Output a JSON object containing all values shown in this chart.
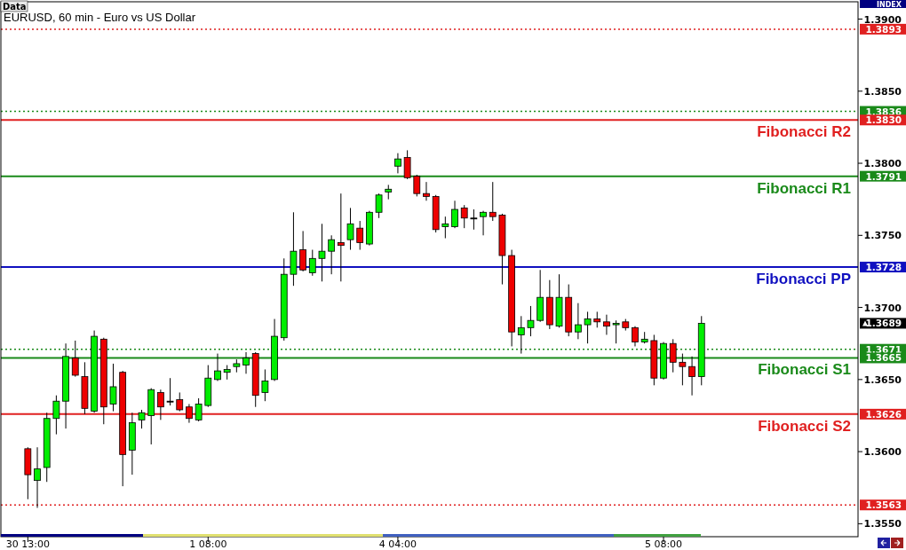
{
  "chart_data": {
    "type": "candlestick",
    "title": "EURUSD, 60 min - Euro vs US Dollar",
    "annotations": [
      "Data",
      "INDEX",
      "1.3893",
      "1.3836",
      "1.3830",
      "1.3791",
      "1.3728",
      "1.3671",
      "1.3665",
      "1.3626",
      "1.3563",
      "1.3689"
    ],
    "categories": [
      "30 13:00",
      null,
      null,
      null,
      null,
      null,
      null,
      null,
      null,
      null,
      null,
      null,
      null,
      null,
      null,
      null,
      null,
      null,
      null,
      "1 08:00",
      null,
      null,
      null,
      null,
      null,
      null,
      null,
      null,
      null,
      null,
      null,
      null,
      null,
      null,
      null,
      null,
      null,
      null,
      null,
      "4 04:00",
      null,
      null,
      null,
      null,
      null,
      null,
      null,
      null,
      null,
      null,
      null,
      null,
      null,
      null,
      null,
      null,
      null,
      null,
      null,
      null,
      null,
      null,
      null,
      null,
      null,
      null,
      null,
      "5 08:00",
      null,
      null,
      null,
      null,
      null,
      null,
      null,
      null,
      null,
      null,
      null,
      null,
      null,
      null,
      null,
      null,
      null,
      null,
      null,
      null
    ],
    "ohlc": [
      [
        1.3602,
        1.3603,
        1.3567,
        1.3584
      ],
      [
        1.358,
        1.3603,
        1.3561,
        1.3588
      ],
      [
        1.3589,
        1.3627,
        1.3579,
        1.3623
      ],
      [
        1.3623,
        1.3639,
        1.3612,
        1.3635
      ],
      [
        1.3635,
        1.3675,
        1.3616,
        1.3666
      ],
      [
        1.3665,
        1.3677,
        1.3652,
        1.3653
      ],
      [
        1.3652,
        1.3662,
        1.3626,
        1.363
      ],
      [
        1.3628,
        1.3684,
        1.3627,
        1.368
      ],
      [
        1.3678,
        1.3679,
        1.3619,
        1.3631
      ],
      [
        1.3633,
        1.3661,
        1.3628,
        1.3645
      ],
      [
        1.3655,
        1.3656,
        1.3576,
        1.3598
      ],
      [
        1.3601,
        1.3627,
        1.3584,
        1.362
      ],
      [
        1.3622,
        1.3629,
        1.3616,
        1.3627
      ],
      [
        1.3625,
        1.3644,
        1.3605,
        1.3643
      ],
      [
        1.3641,
        1.3643,
        1.3622,
        1.3631
      ],
      [
        1.3635,
        1.3651,
        1.3632,
        1.3635
      ],
      [
        1.3636,
        1.3641,
        1.3628,
        1.3629
      ],
      [
        1.3631,
        1.3633,
        1.362,
        1.3623
      ],
      [
        1.3622,
        1.3637,
        1.3621,
        1.3633
      ],
      [
        1.3632,
        1.366,
        1.3631,
        1.3651
      ],
      [
        1.365,
        1.3668,
        1.3649,
        1.3656
      ],
      [
        1.3655,
        1.366,
        1.365,
        1.3657
      ],
      [
        1.3659,
        1.3664,
        1.3655,
        1.3661
      ],
      [
        1.366,
        1.3669,
        1.3654,
        1.3665
      ],
      [
        1.3668,
        1.3669,
        1.3631,
        1.3639
      ],
      [
        1.3641,
        1.3657,
        1.3635,
        1.3649
      ],
      [
        1.365,
        1.3692,
        1.3649,
        1.368
      ],
      [
        1.3679,
        1.3734,
        1.3677,
        1.3723
      ],
      [
        1.3723,
        1.3766,
        1.3715,
        1.3739
      ],
      [
        1.374,
        1.3753,
        1.3725,
        1.3726
      ],
      [
        1.3724,
        1.374,
        1.3722,
        1.3734
      ],
      [
        1.3734,
        1.3758,
        1.3718,
        1.3739
      ],
      [
        1.3739,
        1.375,
        1.3723,
        1.3747
      ],
      [
        1.3745,
        1.3779,
        1.3718,
        1.3743
      ],
      [
        1.3747,
        1.3769,
        1.374,
        1.3758
      ],
      [
        1.3755,
        1.376,
        1.374,
        1.3745
      ],
      [
        1.3744,
        1.3767,
        1.3743,
        1.3766
      ],
      [
        1.3766,
        1.3779,
        1.3762,
        1.3778
      ],
      [
        1.378,
        1.3785,
        1.3775,
        1.3782
      ],
      [
        1.3798,
        1.3807,
        1.3793,
        1.3803
      ],
      [
        1.3804,
        1.3809,
        1.3789,
        1.379
      ],
      [
        1.3791,
        1.3792,
        1.3777,
        1.3779
      ],
      [
        1.3779,
        1.3787,
        1.3774,
        1.3777
      ],
      [
        1.3777,
        1.3778,
        1.3752,
        1.3754
      ],
      [
        1.3756,
        1.3763,
        1.3748,
        1.3758
      ],
      [
        1.3756,
        1.3774,
        1.3755,
        1.3768
      ],
      [
        1.3769,
        1.3771,
        1.3755,
        1.3762
      ],
      [
        1.3762,
        1.3768,
        1.3754,
        1.3762
      ],
      [
        1.3763,
        1.3767,
        1.375,
        1.3766
      ],
      [
        1.3766,
        1.3787,
        1.376,
        1.3763
      ],
      [
        1.3764,
        1.3765,
        1.3716,
        1.3736
      ],
      [
        1.3736,
        1.374,
        1.3673,
        1.3683
      ],
      [
        1.3681,
        1.3694,
        1.3668,
        1.3686
      ],
      [
        1.3686,
        1.3701,
        1.368,
        1.3691
      ],
      [
        1.3691,
        1.3726,
        1.369,
        1.3707
      ],
      [
        1.3707,
        1.3719,
        1.3685,
        1.3688
      ],
      [
        1.3687,
        1.3723,
        1.3686,
        1.3707
      ],
      [
        1.3707,
        1.3716,
        1.368,
        1.3683
      ],
      [
        1.3683,
        1.3703,
        1.3678,
        1.3688
      ],
      [
        1.3688,
        1.3697,
        1.3675,
        1.3692
      ],
      [
        1.3692,
        1.3697,
        1.3686,
        1.369
      ],
      [
        1.369,
        1.3695,
        1.3681,
        1.3687
      ],
      [
        1.3688,
        1.3691,
        1.3675,
        1.3689
      ],
      [
        1.369,
        1.3692,
        1.3684,
        1.3686
      ],
      [
        1.3686,
        1.3687,
        1.3673,
        1.3676
      ],
      [
        1.3676,
        1.3683,
        1.3675,
        1.3678
      ],
      [
        1.3677,
        1.3681,
        1.3646,
        1.3651
      ],
      [
        1.3651,
        1.3676,
        1.365,
        1.3675
      ],
      [
        1.3675,
        1.3678,
        1.3655,
        1.3662
      ],
      [
        1.3662,
        1.3668,
        1.3646,
        1.3659
      ],
      [
        1.3659,
        1.3666,
        1.3639,
        1.3652
      ],
      [
        1.3652,
        1.3694,
        1.3646,
        1.3689
      ],
      null,
      null,
      null,
      null,
      null,
      null,
      null,
      null,
      null,
      null,
      null,
      null,
      null,
      null,
      null,
      null
    ],
    "colors": [
      "#ee0000",
      "#00ee00",
      "#00ee00",
      "#00ee00",
      "#00ee00",
      "#ee0000",
      "#ee0000",
      "#00ee00",
      "#ee0000",
      "#00ee00",
      "#ee0000",
      "#00ee00",
      "#00ee00",
      "#00ee00",
      "#ee0000",
      "#000000",
      "#ee0000",
      "#ee0000",
      "#00ee00",
      "#00ee00",
      "#00ee00",
      "#00ee00",
      "#00ee00",
      "#00ee00",
      "#ee0000",
      "#00ee00",
      "#00ee00",
      "#00ee00",
      "#00ee00",
      "#ee0000",
      "#00ee00",
      "#00ee00",
      "#00ee00",
      "#ee0000",
      "#00ee00",
      "#ee0000",
      "#00ee00",
      "#00ee00",
      "#00ee00",
      "#00ee00",
      "#ee0000",
      "#ee0000",
      "#ee0000",
      "#ee0000",
      "#00ee00",
      "#00ee00",
      "#ee0000",
      "#000000",
      "#00ee00",
      "#ee0000",
      "#ee0000",
      "#ee0000",
      "#00ee00",
      "#00ee00",
      "#00ee00",
      "#ee0000",
      "#00ee00",
      "#ee0000",
      "#00ee00",
      "#00ee00",
      "#ee0000",
      "#ee0000",
      "#00ee00",
      "#ee0000",
      "#ee0000",
      "#00ee00",
      "#ee0000",
      "#00ee00",
      "#ee0000",
      "#ee0000",
      "#ee0000",
      "#00ee00",
      null,
      null,
      null,
      null,
      null,
      null,
      null,
      null,
      null,
      null,
      null,
      null,
      null,
      null,
      null,
      null
    ],
    "ylim": [
      1.3541,
      1.3912
    ],
    "yticks": [
      {
        "value": 1.355,
        "label": "1.3550"
      },
      {
        "value": 1.36,
        "label": "1.3600"
      },
      {
        "value": 1.365,
        "label": "1.3650"
      },
      {
        "value": 1.37,
        "label": "1.3700"
      },
      {
        "value": 1.375,
        "label": "1.3750"
      },
      {
        "value": 1.38,
        "label": "1.3800"
      },
      {
        "value": 1.385,
        "label": "1.3850"
      },
      {
        "value": 1.39,
        "label": "1.3900"
      }
    ],
    "ref_lines": [
      {
        "axis": "y",
        "value": 1.3893,
        "label": null,
        "color": "#e02020",
        "line_style": "dotted"
      },
      {
        "axis": "y",
        "value": 1.3836,
        "label": null,
        "color": "#1a8a1a",
        "line_style": "dotted"
      },
      {
        "axis": "y",
        "value": 1.383,
        "label": "Fibonacci R2",
        "color": "#e02020",
        "line_style": "solid"
      },
      {
        "axis": "y",
        "value": 1.3791,
        "label": "Fibonacci R1",
        "color": "#1a8a1a",
        "line_style": "solid"
      },
      {
        "axis": "y",
        "value": 1.3728,
        "label": "Fibonacci PP",
        "color": "#1010c0",
        "line_style": "solid"
      },
      {
        "axis": "y",
        "value": 1.3671,
        "label": null,
        "color": "#1a8a1a",
        "line_style": "dotted"
      },
      {
        "axis": "y",
        "value": 1.3665,
        "label": "Fibonacci S1",
        "color": "#1a8a1a",
        "line_style": "solid"
      },
      {
        "axis": "y",
        "value": 1.3626,
        "label": "Fibonacci S2",
        "color": "#e02020",
        "line_style": "solid"
      },
      {
        "axis": "y",
        "value": 1.3563,
        "label": null,
        "color": "#e02020",
        "line_style": "dotted"
      }
    ]
  }
}
